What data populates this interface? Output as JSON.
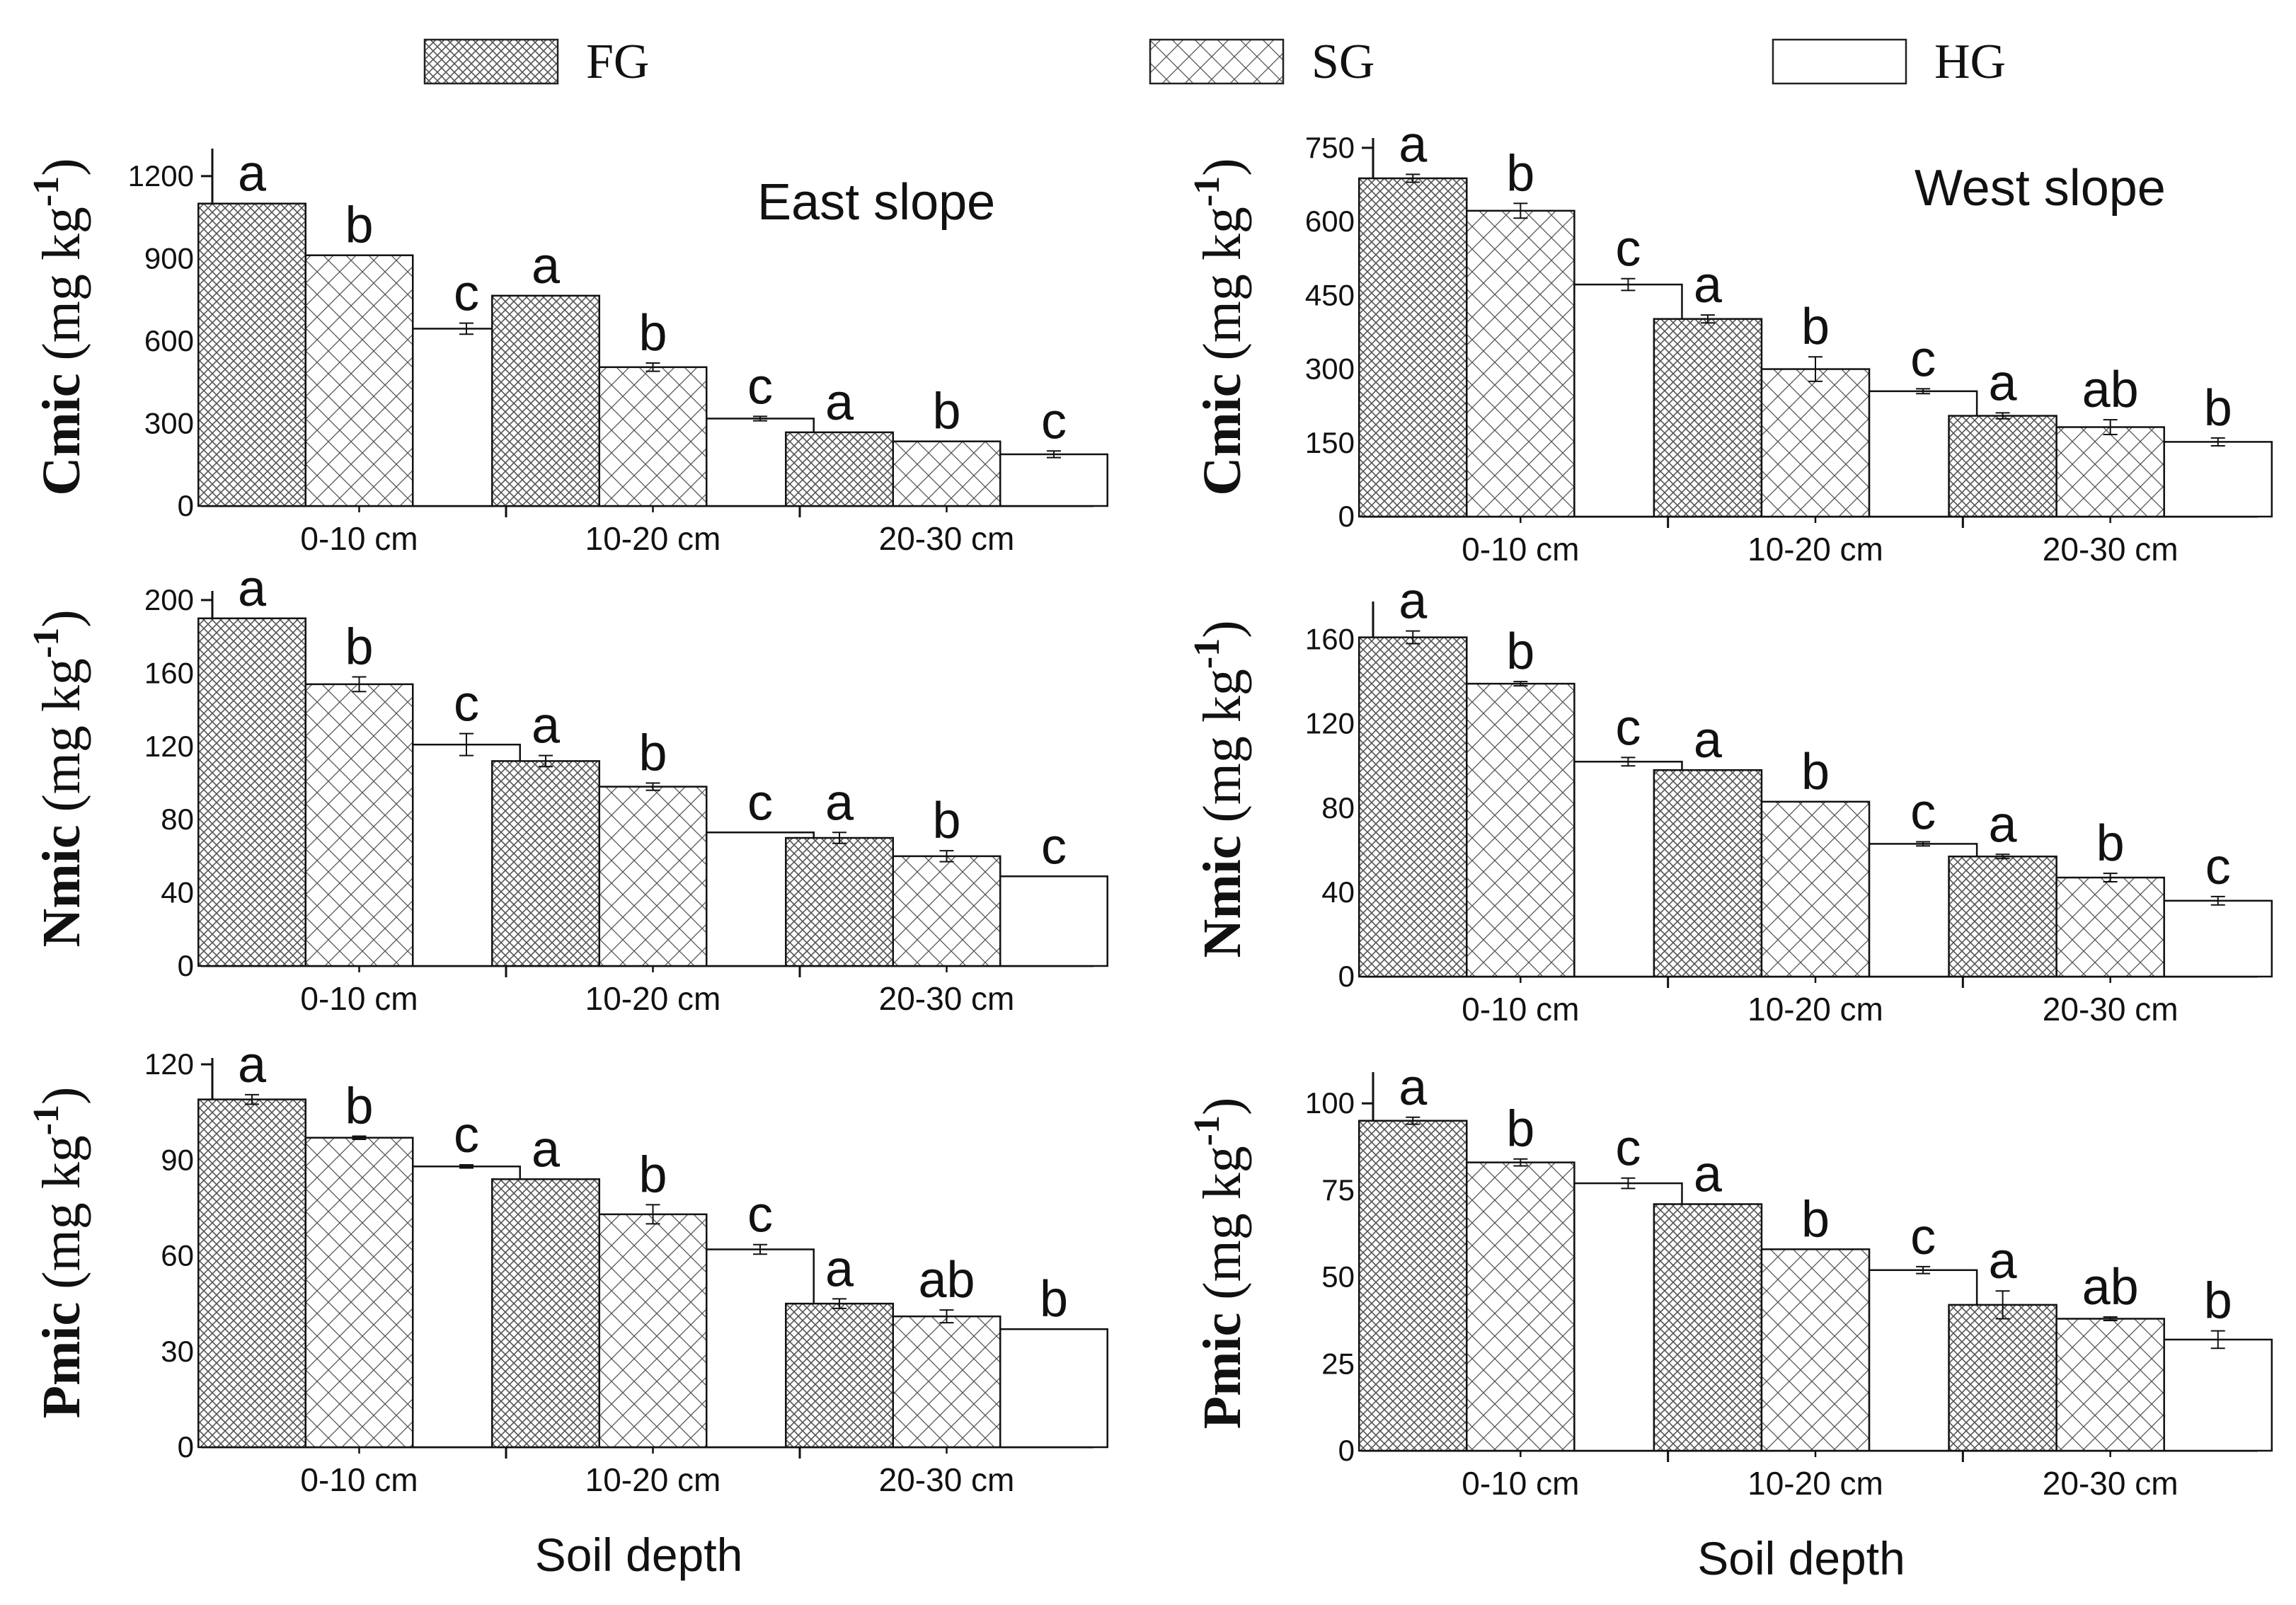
{
  "legend": {
    "position": "top",
    "entries": [
      {
        "name": "FG",
        "fill": "dense-crosshatch"
      },
      {
        "name": "SG",
        "fill": "sparse-crosshatch"
      },
      {
        "name": "HG",
        "fill": "white"
      }
    ]
  },
  "chart_data": [
    {
      "type": "bar",
      "panel": "east-cmic",
      "annotation": "East  slope",
      "ylabel": "Cmic",
      "ylabel_unit": "(mg kg",
      "ylabel_exp": "-1",
      "ylabel_close": ")",
      "xlabel": "",
      "categories": [
        "0-10 cm",
        "10-20 cm",
        "20-30 cm"
      ],
      "ylim": [
        0,
        1300
      ],
      "yticks": [
        0,
        300,
        600,
        900,
        1200
      ],
      "series": [
        {
          "name": "FG",
          "values": [
            1100,
            765,
            268
          ],
          "errors": [
            0,
            0,
            0
          ],
          "letters": [
            "a",
            "a",
            "a"
          ]
        },
        {
          "name": "SG",
          "values": [
            912,
            505,
            235
          ],
          "errors": [
            0,
            15,
            0
          ],
          "letters": [
            "b",
            "b",
            "b"
          ]
        },
        {
          "name": "HG",
          "values": [
            645,
            318,
            188
          ],
          "errors": [
            20,
            8,
            12
          ],
          "letters": [
            "c",
            "c",
            "c"
          ]
        }
      ]
    },
    {
      "type": "bar",
      "panel": "west-cmic",
      "annotation": "West slope",
      "ylabel": "Cmic",
      "ylabel_unit": "(mg kg",
      "ylabel_exp": "-1",
      "ylabel_close": ")",
      "xlabel": "",
      "categories": [
        "0-10 cm",
        "10-20 cm",
        "20-30 cm"
      ],
      "ylim": [
        0,
        770
      ],
      "yticks": [
        0,
        150,
        300,
        450,
        600,
        750
      ],
      "series": [
        {
          "name": "FG",
          "values": [
            688,
            402,
            205
          ],
          "errors": [
            8,
            8,
            6
          ],
          "letters": [
            "a",
            "a",
            "a"
          ]
        },
        {
          "name": "SG",
          "values": [
            622,
            300,
            182
          ],
          "errors": [
            15,
            25,
            15
          ],
          "letters": [
            "b",
            "b",
            "ab"
          ]
        },
        {
          "name": "HG",
          "values": [
            472,
            255,
            152
          ],
          "errors": [
            12,
            5,
            8
          ],
          "letters": [
            "c",
            "c",
            "b"
          ]
        }
      ]
    },
    {
      "type": "bar",
      "panel": "east-nmic",
      "annotation": "",
      "ylabel": "Nmic",
      "ylabel_unit": "(mg kg",
      "ylabel_exp": "-1",
      "ylabel_close": ")",
      "xlabel": "",
      "categories": [
        "0-10 cm",
        "10-20 cm",
        "20-30 cm"
      ],
      "ylim": [
        0,
        205
      ],
      "yticks": [
        0,
        40,
        80,
        120,
        160,
        200
      ],
      "series": [
        {
          "name": "FG",
          "values": [
            190,
            112,
            70
          ],
          "errors": [
            0,
            3,
            3
          ],
          "letters": [
            "a",
            "a",
            "a"
          ]
        },
        {
          "name": "SG",
          "values": [
            154,
            98,
            60
          ],
          "errors": [
            4,
            2,
            3
          ],
          "letters": [
            "b",
            "b",
            "b"
          ]
        },
        {
          "name": "HG",
          "values": [
            121,
            73,
            49
          ],
          "errors": [
            6,
            0,
            0
          ],
          "letters": [
            "c",
            "c",
            "c"
          ]
        }
      ]
    },
    {
      "type": "bar",
      "panel": "west-nmic",
      "annotation": "",
      "ylabel": "Nmic",
      "ylabel_unit": "(mg kg",
      "ylabel_exp": "-1",
      "ylabel_close": ")",
      "xlabel": "",
      "categories": [
        "0-10 cm",
        "10-20 cm",
        "20-30 cm"
      ],
      "ylim": [
        0,
        178
      ],
      "yticks": [
        0,
        40,
        80,
        120,
        160
      ],
      "series": [
        {
          "name": "FG",
          "values": [
            161,
            98,
            57
          ],
          "errors": [
            3,
            0,
            1
          ],
          "letters": [
            "a",
            "a",
            "a"
          ]
        },
        {
          "name": "SG",
          "values": [
            139,
            83,
            47
          ],
          "errors": [
            1,
            0,
            2
          ],
          "letters": [
            "b",
            "b",
            "b"
          ]
        },
        {
          "name": "HG",
          "values": [
            102,
            63,
            36
          ],
          "errors": [
            2,
            1,
            2
          ],
          "letters": [
            "c",
            "c",
            "c"
          ]
        }
      ]
    },
    {
      "type": "bar",
      "panel": "east-pmic",
      "annotation": "",
      "ylabel": "Pmic",
      "ylabel_unit": "(mg kg",
      "ylabel_exp": "-1",
      "ylabel_close": ")",
      "xlabel": "Soil depth",
      "categories": [
        "0-10 cm",
        "10-20 cm",
        "20-30 cm"
      ],
      "ylim": [
        0,
        122
      ],
      "yticks": [
        0,
        30,
        60,
        90,
        120
      ],
      "series": [
        {
          "name": "FG",
          "values": [
            109,
            84,
            45
          ],
          "errors": [
            1.5,
            0,
            1.5
          ],
          "letters": [
            "a",
            "a",
            "a"
          ]
        },
        {
          "name": "SG",
          "values": [
            97,
            73,
            41
          ],
          "errors": [
            0.5,
            3,
            2
          ],
          "letters": [
            "b",
            "b",
            "ab"
          ]
        },
        {
          "name": "HG",
          "values": [
            88,
            62,
            37
          ],
          "errors": [
            0.5,
            1.5,
            0
          ],
          "letters": [
            "c",
            "c",
            "b"
          ]
        }
      ]
    },
    {
      "type": "bar",
      "panel": "west-pmic",
      "annotation": "",
      "ylabel": "Pmic",
      "ylabel_unit": "(mg kg",
      "ylabel_exp": "-1",
      "ylabel_close": ")",
      "xlabel": "Soil depth",
      "categories": [
        "0-10 cm",
        "10-20 cm",
        "20-30 cm"
      ],
      "ylim": [
        0,
        109
      ],
      "yticks": [
        0,
        25,
        50,
        75,
        100
      ],
      "series": [
        {
          "name": "FG",
          "values": [
            95,
            71,
            42
          ],
          "errors": [
            1,
            0,
            4
          ],
          "letters": [
            "a",
            "a",
            "a"
          ]
        },
        {
          "name": "SG",
          "values": [
            83,
            58,
            38
          ],
          "errors": [
            1,
            0,
            0.5
          ],
          "letters": [
            "b",
            "b",
            "ab"
          ]
        },
        {
          "name": "HG",
          "values": [
            77,
            52,
            32
          ],
          "errors": [
            1.5,
            1,
            2.5
          ],
          "letters": [
            "c",
            "c",
            "b"
          ]
        }
      ]
    }
  ]
}
